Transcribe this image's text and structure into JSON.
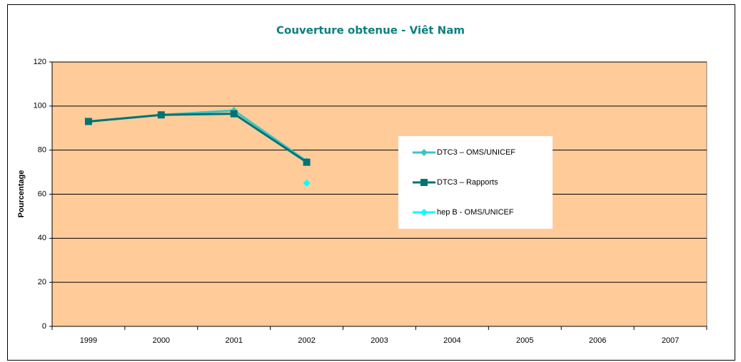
{
  "chart_data": {
    "type": "line",
    "title": "Couverture obtenue  - Viêt Nam",
    "y_label": "Pourcentage",
    "categories": [
      "1999",
      "2000",
      "2001",
      "2002",
      "2003",
      "2004",
      "2005",
      "2006",
      "2007"
    ],
    "series": [
      {
        "name": "DTC3 – OMS/UNICEF",
        "color": "#3cc4c4",
        "marker": "diamond",
        "values": [
          93,
          96,
          98,
          75,
          null,
          null,
          null,
          null,
          null
        ]
      },
      {
        "name": "DTC3 – Rapports",
        "color": "#007373",
        "marker": "square",
        "values": [
          93,
          96,
          96.5,
          74.5,
          null,
          null,
          null,
          null,
          null
        ]
      },
      {
        "name": "hep B - OMS/UNICEF",
        "color": "#00ffff",
        "marker": "diamond",
        "values": [
          null,
          null,
          null,
          65,
          null,
          null,
          null,
          null,
          null
        ]
      }
    ],
    "ylim": [
      0,
      120
    ],
    "yticks": [
      0,
      20,
      40,
      60,
      80,
      100,
      120
    ],
    "grid": true,
    "plot_color": "#ffcc99",
    "legend": "right"
  }
}
